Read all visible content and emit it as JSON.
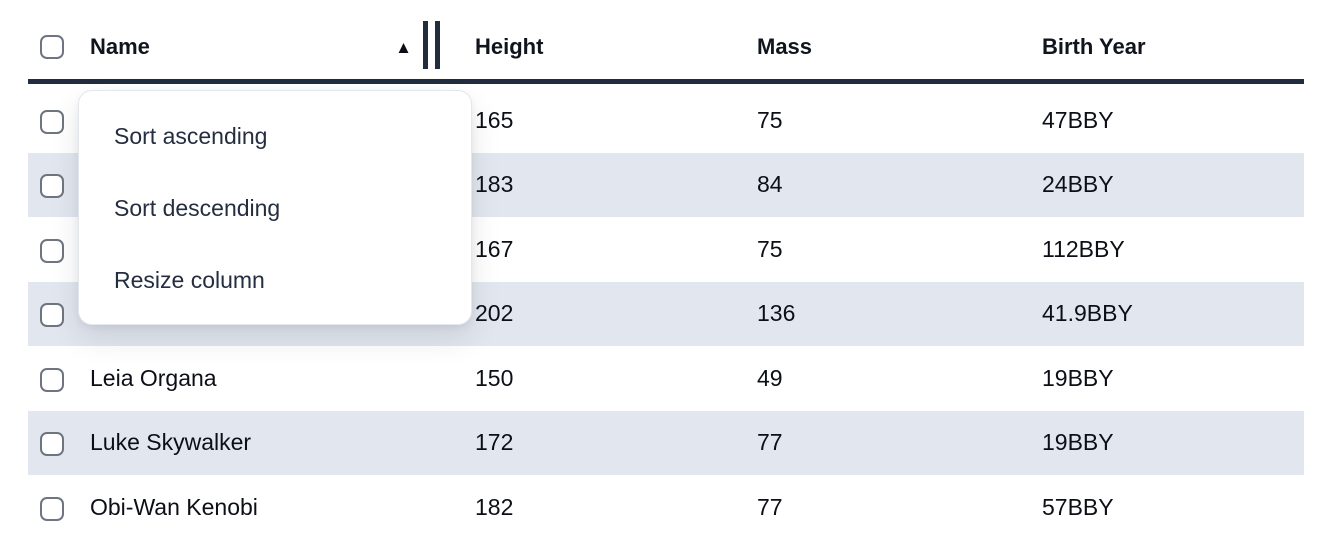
{
  "table": {
    "columns": [
      {
        "label": "Name",
        "sorted": "ascending"
      },
      {
        "label": "Height"
      },
      {
        "label": "Mass"
      },
      {
        "label": "Birth Year"
      }
    ],
    "rows": [
      {
        "name": "",
        "height": "165",
        "mass": "75",
        "birth_year": "47BBY"
      },
      {
        "name": "",
        "height": "183",
        "mass": "84",
        "birth_year": "24BBY"
      },
      {
        "name": "",
        "height": "167",
        "mass": "75",
        "birth_year": "112BBY"
      },
      {
        "name": "",
        "height": "202",
        "mass": "136",
        "birth_year": "41.9BBY"
      },
      {
        "name": "Leia Organa",
        "height": "150",
        "mass": "49",
        "birth_year": "19BBY"
      },
      {
        "name": "Luke Skywalker",
        "height": "172",
        "mass": "77",
        "birth_year": "19BBY"
      },
      {
        "name": "Obi-Wan Kenobi",
        "height": "182",
        "mass": "77",
        "birth_year": "57BBY"
      }
    ]
  },
  "context_menu": {
    "items": [
      {
        "label": "Sort ascending"
      },
      {
        "label": "Sort descending"
      },
      {
        "label": "Resize column"
      }
    ]
  },
  "icons": {
    "sort_ascending": "▲"
  },
  "colors": {
    "header_border": "#212c3f",
    "row_stripe": "#e2e7ef",
    "menu_background": "#ffffff",
    "text": "#0c0f15"
  }
}
